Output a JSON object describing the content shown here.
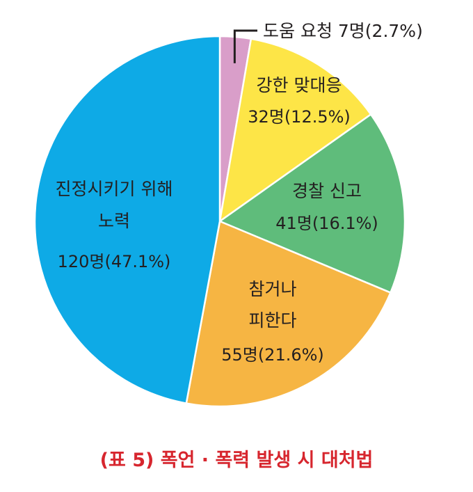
{
  "chart_data": {
    "type": "pie",
    "title": "(표 5)  폭언 · 폭력 발생 시 대처법",
    "slices": [
      {
        "label": "도움 요청",
        "value": 7,
        "unit": "명",
        "percent": 2.7,
        "value_text": "7명(2.7%)",
        "color": "#d99ec9"
      },
      {
        "label": "강한 맞대응",
        "value": 32,
        "unit": "명",
        "percent": 12.5,
        "value_text": "32명(12.5%)",
        "color": "#fde547"
      },
      {
        "label": "경찰 신고",
        "value": 41,
        "unit": "명",
        "percent": 16.1,
        "value_text": "41명(16.1%)",
        "color": "#5fbc7b"
      },
      {
        "label": "참거나 피한다",
        "label_lines": [
          "참거나",
          "피한다"
        ],
        "value": 55,
        "unit": "명",
        "percent": 21.6,
        "value_text": "55명(21.6%)",
        "color": "#f6b543"
      },
      {
        "label": "진정시키기 위해 노력",
        "label_lines": [
          "진정시키기 위해",
          "노력"
        ],
        "value": 120,
        "unit": "명",
        "percent": 47.1,
        "value_text": "120명(47.1%)",
        "color": "#0eaae6"
      }
    ],
    "start_angle_deg": 0,
    "direction": "clockwise",
    "legend": "none",
    "slice_border_color": "#ffffff"
  }
}
